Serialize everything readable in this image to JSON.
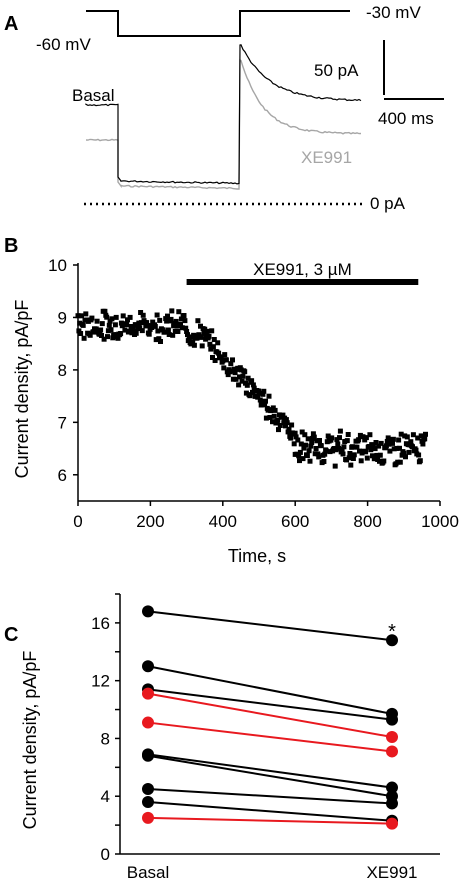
{
  "panel_labels": {
    "a": "A",
    "b": "B",
    "c": "C"
  },
  "panel_a": {
    "holding_voltage": "-30 mV",
    "step_voltage": "-60 mV",
    "current_scale": "50 pA",
    "time_scale": "400 ms",
    "zero_current": "0 pA",
    "trace_basal_label": "Basal",
    "trace_xe991_label": "XE991",
    "colors": {
      "basal": "#000000",
      "xe991": "#a6a6a6"
    }
  },
  "chart_data": [
    {
      "type": "scatter",
      "panel": "B",
      "xlabel": "Time, s",
      "ylabel": "Current density, pA/pF",
      "xlim": [
        0,
        1000
      ],
      "ylim": [
        5.5,
        10
      ],
      "xticks": [
        0,
        200,
        400,
        600,
        800,
        1000
      ],
      "yticks": [
        6,
        7,
        8,
        9,
        10
      ],
      "bar_label": "XE991, 3 µM",
      "bar_range": [
        300,
        940
      ],
      "segments": [
        {
          "x_start": 0,
          "x_end": 300,
          "mean": 8.85,
          "spread": 0.32
        },
        {
          "x_start": 300,
          "x_end": 350,
          "mean": 8.7,
          "spread": 0.3
        },
        {
          "x_start": 350,
          "x_end": 600,
          "mean_start": 8.6,
          "mean_end": 6.75,
          "spread": 0.3
        },
        {
          "x_start": 600,
          "x_end": 960,
          "mean": 6.5,
          "spread": 0.38
        }
      ]
    },
    {
      "type": "line",
      "panel": "C",
      "categories": [
        "Basal",
        "XE991"
      ],
      "ylabel": "Current density, pA/pF",
      "ylim": [
        0,
        18
      ],
      "yticks": [
        0,
        4,
        8,
        12,
        16
      ],
      "significance": "*",
      "series": [
        {
          "values": [
            16.8,
            14.8
          ],
          "color": "#000000"
        },
        {
          "values": [
            13.0,
            9.7
          ],
          "color": "#000000"
        },
        {
          "values": [
            11.4,
            9.3
          ],
          "color": "#000000"
        },
        {
          "values": [
            11.1,
            8.1
          ],
          "color": "#e8191f"
        },
        {
          "values": [
            9.1,
            7.1
          ],
          "color": "#e8191f"
        },
        {
          "values": [
            6.9,
            4.6
          ],
          "color": "#000000"
        },
        {
          "values": [
            6.8,
            4.0
          ],
          "color": "#000000"
        },
        {
          "values": [
            4.5,
            3.5
          ],
          "color": "#000000"
        },
        {
          "values": [
            3.6,
            2.3
          ],
          "color": "#000000"
        },
        {
          "values": [
            2.5,
            2.1
          ],
          "color": "#e8191f"
        }
      ]
    }
  ]
}
